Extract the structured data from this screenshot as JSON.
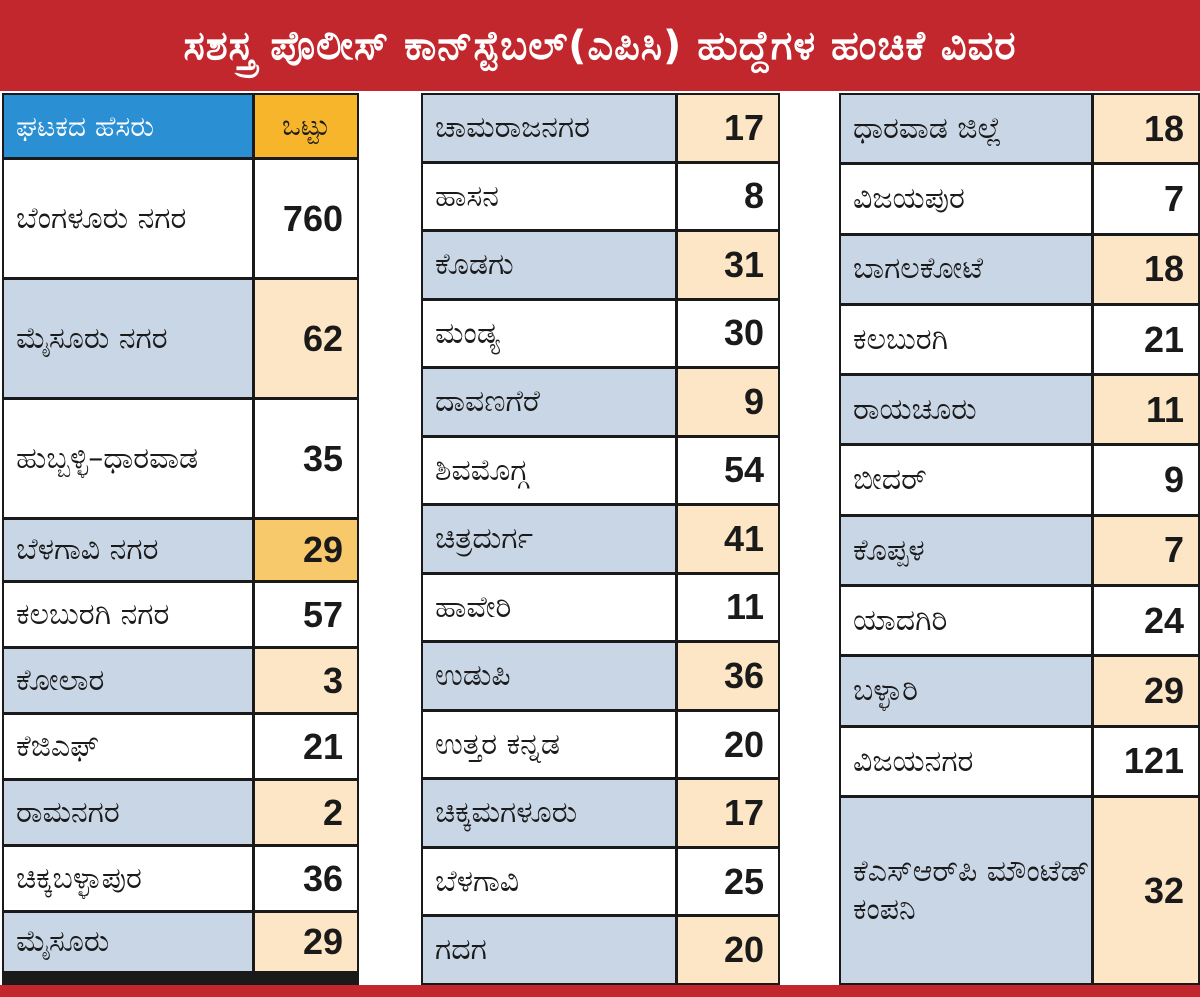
{
  "title": "ಸಶಸ್ತ್ರ ಪೊಲೀಸ್ ಕಾನ್‌ಸ್ಟೆಬಲ್(ಎಪಿಸಿ) ಹುದ್ದೆಗಳ ಹಂಚಿಕೆ ವಿವರ",
  "colors": {
    "title_bg": "#c1272d",
    "header_name_bg": "#2b8fd4",
    "header_value_bg": "#f7b52c",
    "shaded_name_bg": "#c9d6e6",
    "shaded_value_bg": "#fde6c5"
  },
  "table": {
    "header": {
      "unit": "ಘಟಕದ ಹೆಸರು",
      "total": "ಒಟ್ಟು"
    },
    "column1": [
      {
        "name": "ಬೆಂಗಳೂರು ನಗರ",
        "value": "760"
      },
      {
        "name": "ಮೈಸೂರು ನಗರ",
        "value": "62"
      },
      {
        "name": "ಹುಬ್ಬಳ್ಳಿ–ಧಾರವಾಡ",
        "value": "35"
      },
      {
        "name": "ಬೆಳಗಾವಿ ನಗರ",
        "value": "29"
      },
      {
        "name": "ಕಲಬುರಗಿ ನಗರ",
        "value": "57"
      },
      {
        "name": "ಕೋಲಾರ",
        "value": "3"
      },
      {
        "name": "ಕೆಜಿಎಫ್",
        "value": "21"
      },
      {
        "name": "ರಾಮನಗರ",
        "value": "2"
      },
      {
        "name": "ಚಿಕ್ಕಬಳ್ಳಾಪುರ",
        "value": "36"
      },
      {
        "name": "ಮೈಸೂರು",
        "value": "29"
      }
    ],
    "column2": [
      {
        "name": "ಚಾಮರಾಜನಗರ",
        "value": "17"
      },
      {
        "name": "ಹಾಸನ",
        "value": "8"
      },
      {
        "name": "ಕೊಡಗು",
        "value": "31"
      },
      {
        "name": "ಮಂಡ್ಯ",
        "value": "30"
      },
      {
        "name": "ದಾವಣಗೆರೆ",
        "value": "9"
      },
      {
        "name": "ಶಿವಮೊಗ್ಗ",
        "value": "54"
      },
      {
        "name": "ಚಿತ್ರದುರ್ಗ",
        "value": "41"
      },
      {
        "name": "ಹಾವೇರಿ",
        "value": "11"
      },
      {
        "name": "ಉಡುಪಿ",
        "value": "36"
      },
      {
        "name": "ಉತ್ತರ ಕನ್ನಡ",
        "value": "20"
      },
      {
        "name": "ಚಿಕ್ಕಮಗಳೂರು",
        "value": "17"
      },
      {
        "name": "ಬೆಳಗಾವಿ",
        "value": "25"
      },
      {
        "name": "ಗದಗ",
        "value": "20"
      }
    ],
    "column3": [
      {
        "name": "ಧಾರವಾಡ ಜಿಲ್ಲೆ",
        "value": "18"
      },
      {
        "name": "ವಿಜಯಪುರ",
        "value": "7"
      },
      {
        "name": "ಬಾಗಲಕೋಟೆ",
        "value": "18"
      },
      {
        "name": "ಕಲಬುರಗಿ",
        "value": "21"
      },
      {
        "name": "ರಾಯಚೂರು",
        "value": "11"
      },
      {
        "name": "ಬೀದರ್",
        "value": "9"
      },
      {
        "name": "ಕೊಪ್ಪಳ",
        "value": "7"
      },
      {
        "name": "ಯಾದಗಿರಿ",
        "value": "24"
      },
      {
        "name": "ಬಳ್ಳಾರಿ",
        "value": "29"
      },
      {
        "name": "ವಿಜಯನಗರ",
        "value": "121"
      },
      {
        "name": "ಕೆಎಸ್‌ಆರ್‌ಪಿ ಮೌಂಟೆಡ್ ಕಂಪನಿ",
        "value": "32"
      }
    ]
  }
}
